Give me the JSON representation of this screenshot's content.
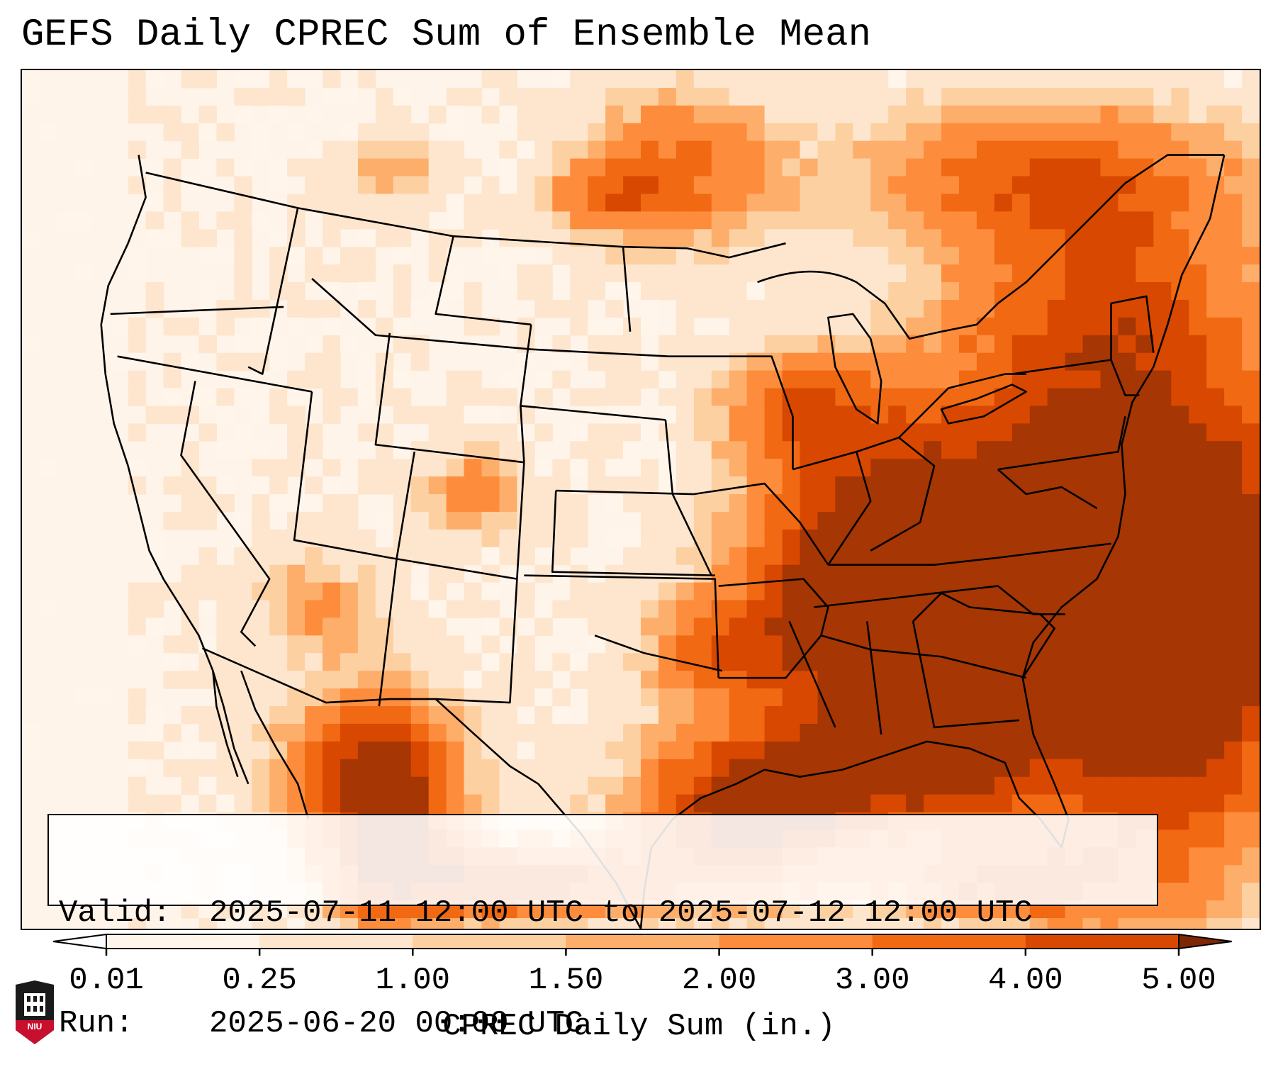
{
  "title": "GEFS Daily CPREC Sum of Ensemble Mean",
  "info": {
    "valid_label": "Valid:",
    "valid_value": "2025-07-11 12:00 UTC to 2025-07-12 12:00 UTC",
    "run_label": "Run:",
    "run_value": "2025-06-20 00:00 UTC"
  },
  "colorbar": {
    "label": "CPREC Daily Sum (in.)",
    "ticks": [
      "0.01",
      "0.25",
      "1.00",
      "1.50",
      "2.00",
      "3.00",
      "4.00",
      "5.00"
    ],
    "colors": [
      "#fff5eb",
      "#fee6ce",
      "#fdd0a2",
      "#fdae6b",
      "#fd8d3c",
      "#f16913",
      "#d94801",
      "#a63603"
    ],
    "under_color": "#ffffff",
    "over_color": "#7f2704",
    "extend": "both"
  },
  "logo": {
    "text": "NIU",
    "colors": {
      "red": "#c8102e",
      "black": "#1a1a1a",
      "white": "#ffffff"
    }
  },
  "map": {
    "projection": "Lambert conformal, CONUS",
    "features": [
      "coastlines",
      "country borders",
      "state borders"
    ],
    "field": "GEFS ensemble mean daily CPREC sum"
  }
}
